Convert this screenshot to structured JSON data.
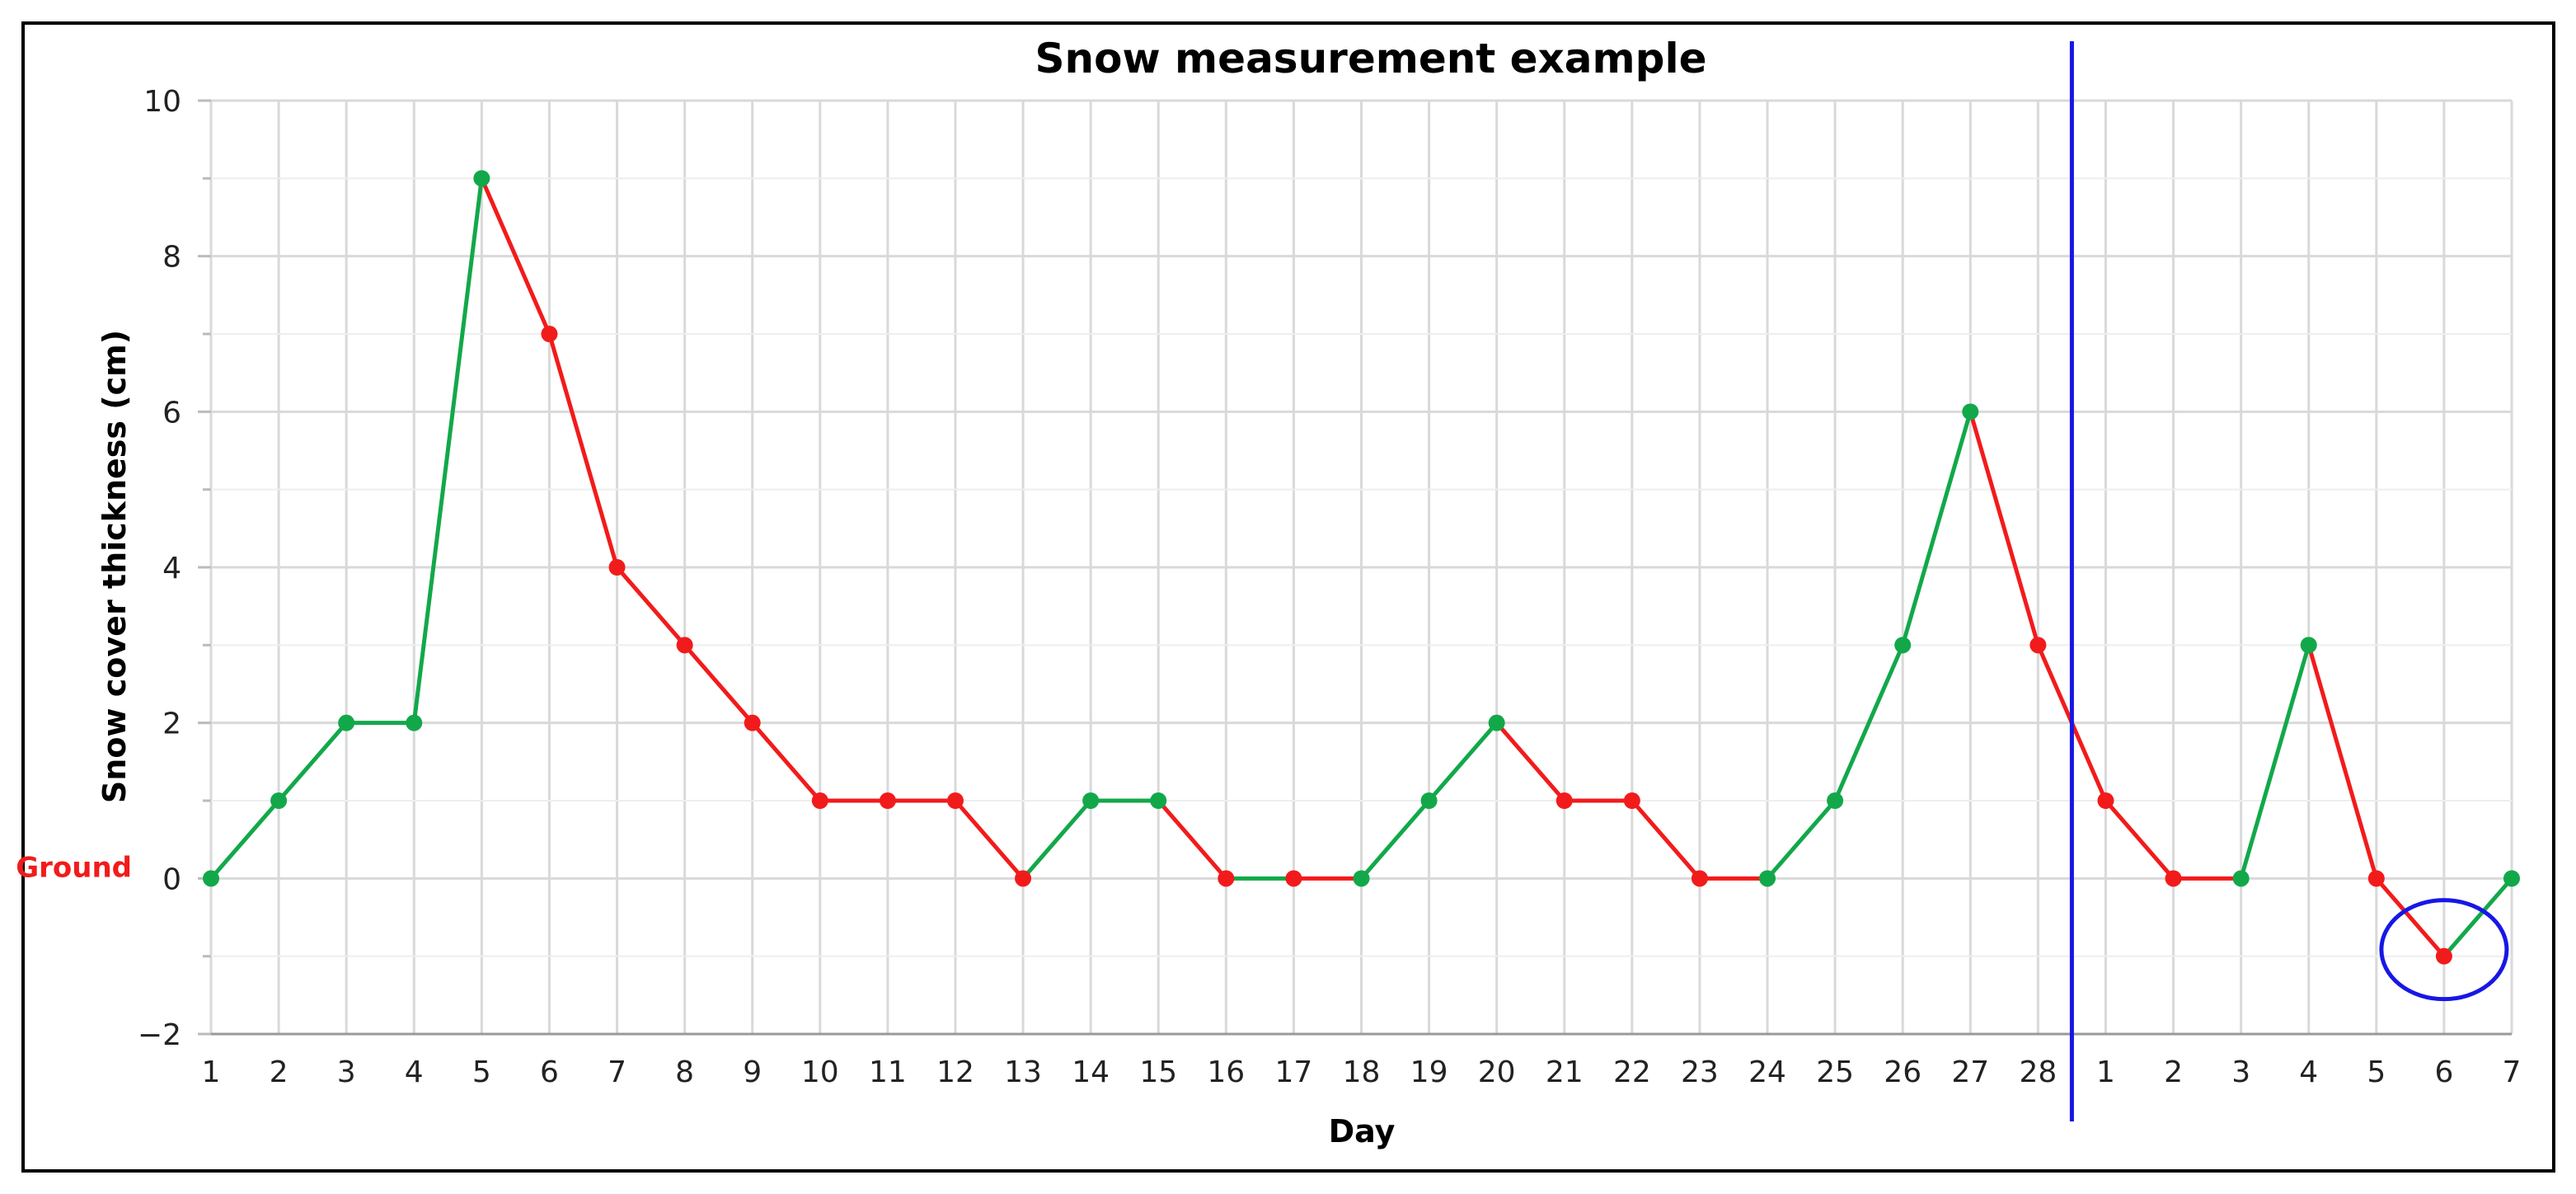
{
  "chart_data": {
    "type": "line",
    "title": "Snow measurement example",
    "xlabel": "Day",
    "ylabel": "Snow cover thickness (cm)",
    "ylim": [
      -2,
      10
    ],
    "yticks": [
      -2,
      0,
      2,
      4,
      6,
      8,
      10
    ],
    "grid": true,
    "categories": [
      "1",
      "2",
      "3",
      "4",
      "5",
      "6",
      "7",
      "8",
      "9",
      "10",
      "11",
      "12",
      "13",
      "14",
      "15",
      "16",
      "17",
      "18",
      "19",
      "20",
      "21",
      "22",
      "23",
      "24",
      "25",
      "26",
      "27",
      "28",
      "1",
      "2",
      "3",
      "4",
      "5",
      "6",
      "7"
    ],
    "series": [
      {
        "values": [
          0,
          1,
          2,
          2,
          9,
          7,
          4,
          3,
          2,
          1,
          1,
          1,
          0,
          1,
          1,
          0,
          0,
          0,
          1,
          2,
          1,
          1,
          0,
          0,
          1,
          3,
          6,
          3,
          1,
          0,
          0,
          3,
          0,
          -1,
          0
        ]
      }
    ],
    "colors": {
      "increase": "#12a84a",
      "decrease": "#f21b1b",
      "marker": "#1717e6",
      "grid": "#d9d9d9"
    },
    "annotations": {
      "ground_label": "Ground",
      "ground_value": 0,
      "divider_between": [
        "28",
        "1"
      ],
      "highlight_ellipse_category_index": 33,
      "highlight_ellipse_value": -1
    }
  }
}
